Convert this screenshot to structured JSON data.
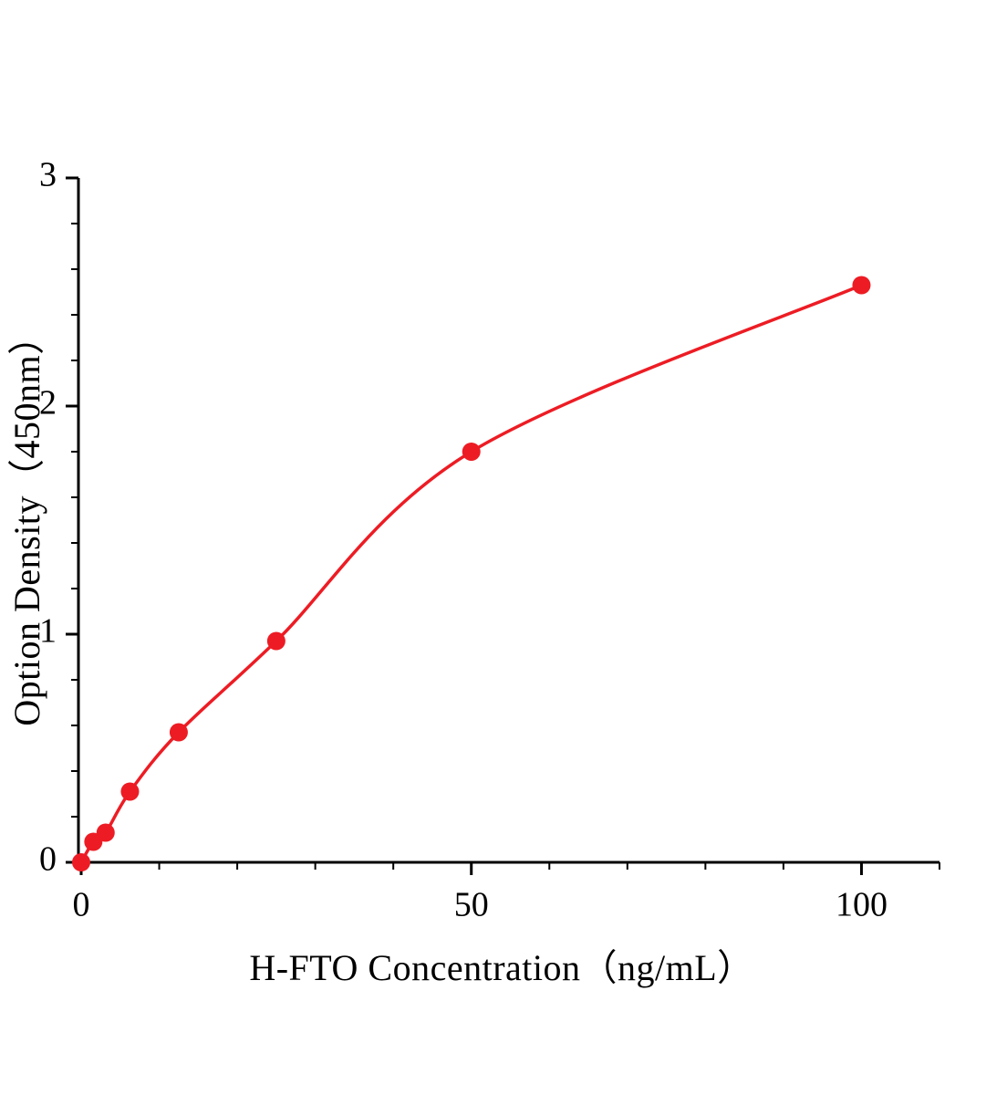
{
  "accent_color": "#ed1c24",
  "axis_color": "#000000",
  "chart_data": {
    "type": "scatter",
    "subtype": "standard-curve-with-fit-line",
    "title": "",
    "xlabel": "H-FTO Concentration（ng/mL）",
    "ylabel": "Option Density（450nm）",
    "x": [
      0,
      1.56,
      3.13,
      6.25,
      12.5,
      25,
      50,
      100
    ],
    "y": [
      0,
      0.09,
      0.13,
      0.31,
      0.57,
      0.97,
      1.8,
      2.53
    ],
    "xlim": [
      0,
      110
    ],
    "ylim": [
      0,
      3
    ],
    "x_major_ticks": [
      0,
      50,
      100
    ],
    "x_major_tick_labels": [
      "0",
      "50",
      "100"
    ],
    "x_minor_step": 10,
    "y_major_ticks": [
      0,
      1,
      2,
      3
    ],
    "y_major_tick_labels": [
      "0",
      "1",
      "2",
      "3"
    ],
    "y_minor_step": 0.2,
    "grid": false,
    "legend_position": "none",
    "marker": "circle",
    "marker_color": "#ed1c24",
    "line_color": "#ed1c24"
  }
}
